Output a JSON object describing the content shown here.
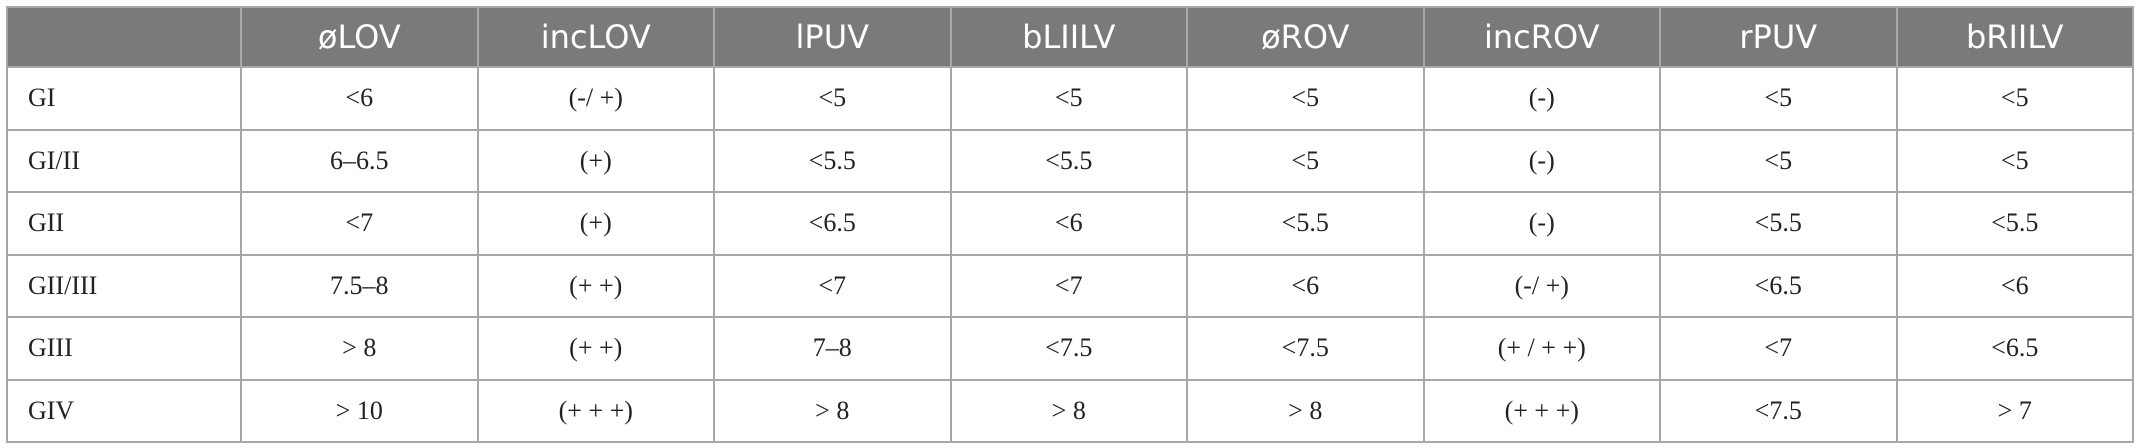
{
  "table": {
    "columns": [
      "",
      "øLOV",
      "incLOV",
      "lPUV",
      "bLIILV",
      "øROV",
      "incROV",
      "rPUV",
      "bRIILV"
    ],
    "rows": [
      [
        "GI",
        "<6",
        "(-/ +)",
        "<5",
        "<5",
        "<5",
        "(-)",
        "<5",
        "<5"
      ],
      [
        "GI/II",
        "6–6.5",
        "(+)",
        "<5.5",
        "<5.5",
        "<5",
        "(-)",
        "<5",
        "<5"
      ],
      [
        "GII",
        "<7",
        "(+)",
        "<6.5",
        "<6",
        "<5.5",
        "(-)",
        "<5.5",
        "<5.5"
      ],
      [
        "GII/III",
        "7.5–8",
        "(+ +)",
        "<7",
        "<7",
        "<6",
        "(-/ +)",
        "<6.5",
        "<6"
      ],
      [
        "GIII",
        "> 8",
        "(+ +)",
        "7–8",
        "<7.5",
        "<7.5",
        "(+ / + +)",
        "<7",
        "<6.5"
      ],
      [
        "GIV",
        "> 10",
        "(+ + +)",
        "> 8",
        "> 8",
        "> 8",
        "(+ + +)",
        "<7.5",
        "> 7"
      ]
    ]
  }
}
